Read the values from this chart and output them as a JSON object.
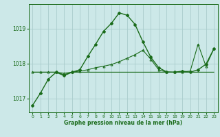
{
  "xlabel": "Graphe pression niveau de la mer (hPa)",
  "bg_color": "#cce8e8",
  "grid_color": "#aacccc",
  "line_color": "#1a6b1a",
  "xlim": [
    -0.5,
    23.5
  ],
  "ylim": [
    1016.6,
    1019.7
  ],
  "yticks": [
    1017,
    1018,
    1019
  ],
  "xticks": [
    0,
    1,
    2,
    3,
    4,
    5,
    6,
    7,
    8,
    9,
    10,
    11,
    12,
    13,
    14,
    15,
    16,
    17,
    18,
    19,
    20,
    21,
    22,
    23
  ],
  "line1_x": [
    0,
    1,
    2,
    3,
    4,
    5,
    6,
    7,
    8,
    9,
    10,
    11,
    12,
    13,
    14,
    15,
    16,
    17,
    18,
    19,
    20,
    21,
    22,
    23
  ],
  "line1_y": [
    1016.8,
    1017.15,
    1017.55,
    1017.75,
    1017.65,
    1017.75,
    1017.82,
    1018.2,
    1018.55,
    1018.92,
    1019.15,
    1019.45,
    1019.38,
    1019.12,
    1018.62,
    1018.18,
    1017.88,
    1017.76,
    1017.75,
    1017.78,
    1017.75,
    1017.82,
    1017.98,
    1018.42
  ],
  "line2_x": [
    0,
    1,
    2,
    3,
    4,
    5,
    6,
    7,
    8,
    9,
    10,
    11,
    12,
    13,
    14,
    15,
    16,
    17,
    18,
    19,
    20,
    21,
    22,
    23
  ],
  "line2_y": [
    1017.75,
    1017.75,
    1017.75,
    1017.75,
    1017.68,
    1017.75,
    1017.75,
    1017.75,
    1017.75,
    1017.75,
    1017.75,
    1017.75,
    1017.75,
    1017.75,
    1017.75,
    1017.75,
    1017.75,
    1017.75,
    1017.75,
    1017.75,
    1017.75,
    1017.75,
    1017.75,
    1017.75
  ],
  "line3_x": [
    0,
    1,
    2,
    3,
    4,
    5,
    6,
    7,
    8,
    9,
    10,
    11,
    12,
    13,
    14,
    15,
    16,
    17,
    18,
    19,
    20,
    21,
    22,
    23
  ],
  "line3_y": [
    1017.75,
    1017.75,
    1017.75,
    1017.75,
    1017.72,
    1017.75,
    1017.78,
    1017.82,
    1017.88,
    1017.92,
    1017.97,
    1018.05,
    1018.15,
    1018.25,
    1018.38,
    1018.12,
    1017.82,
    1017.75,
    1017.75,
    1017.76,
    1017.78,
    1018.55,
    1017.92,
    1018.42
  ]
}
